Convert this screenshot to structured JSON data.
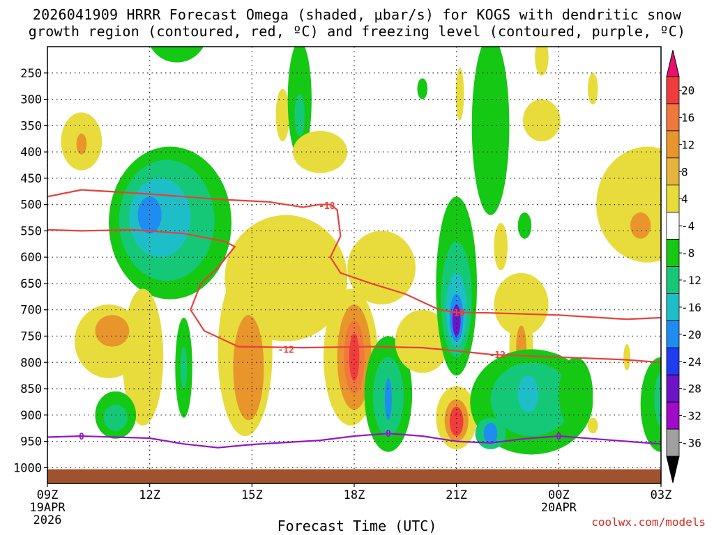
{
  "chart_data": {
    "type": "heatmap",
    "title_line1": "2026041909 HRRR Forecast Omega (shaded, μbar/s) for KOGS with dendritic snow",
    "title_line2": "growth region (contoured, red, ºC) and freezing level (contoured, purple, ºC)",
    "xlabel": "Forecast Time (UTC)",
    "credit": "coolwx.com/models",
    "x_range_hours": [
      0,
      18
    ],
    "y_range_hpa": [
      200,
      1030
    ],
    "y_ticks": [
      250,
      300,
      350,
      400,
      450,
      500,
      550,
      600,
      650,
      700,
      750,
      800,
      850,
      900,
      950,
      1000
    ],
    "x_ticks": [
      {
        "hour": 0,
        "label": "09Z",
        "sub1": "19APR",
        "sub2": "2026"
      },
      {
        "hour": 3,
        "label": "12Z",
        "sub1": "",
        "sub2": ""
      },
      {
        "hour": 6,
        "label": "15Z",
        "sub1": "",
        "sub2": ""
      },
      {
        "hour": 9,
        "label": "18Z",
        "sub1": "",
        "sub2": ""
      },
      {
        "hour": 12,
        "label": "21Z",
        "sub1": "",
        "sub2": ""
      },
      {
        "hour": 15,
        "label": "00Z",
        "sub1": "20APR",
        "sub2": ""
      },
      {
        "hour": 18,
        "label": "03Z",
        "sub1": "",
        "sub2": ""
      }
    ],
    "colorbar": {
      "labels": [
        "20",
        "16",
        "12",
        "8",
        "4",
        "-4",
        "-8",
        "-12",
        "-16",
        "-20",
        "-24",
        "-28",
        "-32",
        "-36"
      ],
      "colors": [
        "#e8106e",
        "#f03c3c",
        "#f0783c",
        "#e8962c",
        "#e6b43c",
        "#e8dc3c",
        "#ffffff",
        "#14c814",
        "#14c878",
        "#1ebec8",
        "#1e8cf0",
        "#1e3cf0",
        "#6e14c8",
        "#a00ac8",
        "#a0a0a0",
        "#000000"
      ]
    },
    "omega_blobs": [
      {
        "t": 1.0,
        "p": 380,
        "dt": 0.6,
        "dp": 55,
        "value": 5
      },
      {
        "t": 1.0,
        "p": 385,
        "dt": 0.15,
        "dp": 20,
        "value": 9
      },
      {
        "t": 3.8,
        "p": 170,
        "dt": 0.9,
        "dp": 60,
        "value": -6
      },
      {
        "t": 3.6,
        "p": 535,
        "dt": 1.8,
        "dp": 145,
        "value": -6
      },
      {
        "t": 3.5,
        "p": 530,
        "dt": 1.4,
        "dp": 115,
        "value": -10
      },
      {
        "t": 3.3,
        "p": 525,
        "dt": 0.9,
        "dp": 75,
        "value": -13
      },
      {
        "t": 3.0,
        "p": 520,
        "dt": 0.35,
        "dp": 35,
        "value": -17
      },
      {
        "t": 2.8,
        "p": 790,
        "dt": 0.6,
        "dp": 130,
        "value": 5
      },
      {
        "t": 1.8,
        "p": 760,
        "dt": 1.0,
        "dp": 70,
        "value": 5
      },
      {
        "t": 1.9,
        "p": 740,
        "dt": 0.5,
        "dp": 30,
        "value": 9
      },
      {
        "t": 2.0,
        "p": 900,
        "dt": 0.6,
        "dp": 45,
        "value": -6
      },
      {
        "t": 2.0,
        "p": 905,
        "dt": 0.35,
        "dp": 25,
        "value": -10
      },
      {
        "t": 4.0,
        "p": 810,
        "dt": 0.25,
        "dp": 95,
        "value": -6
      },
      {
        "t": 4.0,
        "p": 810,
        "dt": 0.1,
        "dp": 40,
        "value": -10
      },
      {
        "t": 6.9,
        "p": 330,
        "dt": 0.2,
        "dp": 50,
        "value": 5
      },
      {
        "t": 7.4,
        "p": 300,
        "dt": 0.35,
        "dp": 110,
        "value": -6
      },
      {
        "t": 7.4,
        "p": 330,
        "dt": 0.15,
        "dp": 40,
        "value": -10
      },
      {
        "t": 8.0,
        "p": 400,
        "dt": 0.8,
        "dp": 40,
        "value": 5
      },
      {
        "t": 7.0,
        "p": 640,
        "dt": 1.8,
        "dp": 120,
        "value": 5
      },
      {
        "t": 5.8,
        "p": 780,
        "dt": 0.8,
        "dp": 160,
        "value": 5
      },
      {
        "t": 5.9,
        "p": 810,
        "dt": 0.45,
        "dp": 100,
        "value": 9
      },
      {
        "t": 9.8,
        "p": 620,
        "dt": 1.0,
        "dp": 70,
        "value": 5
      },
      {
        "t": 8.9,
        "p": 790,
        "dt": 0.8,
        "dp": 130,
        "value": 5
      },
      {
        "t": 9.0,
        "p": 790,
        "dt": 0.5,
        "dp": 100,
        "value": 9
      },
      {
        "t": 9.0,
        "p": 790,
        "dt": 0.3,
        "dp": 70,
        "value": 13
      },
      {
        "t": 9.0,
        "p": 790,
        "dt": 0.15,
        "dp": 45,
        "value": 17
      },
      {
        "t": 10.0,
        "p": 860,
        "dt": 0.7,
        "dp": 110,
        "value": -6
      },
      {
        "t": 10.0,
        "p": 865,
        "dt": 0.45,
        "dp": 75,
        "value": -10
      },
      {
        "t": 10.0,
        "p": 870,
        "dt": 0.1,
        "dp": 40,
        "value": -17
      },
      {
        "t": 11.0,
        "p": 760,
        "dt": 0.8,
        "dp": 60,
        "value": 5
      },
      {
        "t": 12.0,
        "p": 655,
        "dt": 0.6,
        "dp": 170,
        "value": -6
      },
      {
        "t": 12.0,
        "p": 680,
        "dt": 0.45,
        "dp": 110,
        "value": -10
      },
      {
        "t": 12.0,
        "p": 700,
        "dt": 0.3,
        "dp": 70,
        "value": -14
      },
      {
        "t": 12.0,
        "p": 715,
        "dt": 0.2,
        "dp": 45,
        "value": -19
      },
      {
        "t": 12.0,
        "p": 720,
        "dt": 0.12,
        "dp": 30,
        "value": -27
      },
      {
        "t": 12.0,
        "p": 905,
        "dt": 0.6,
        "dp": 60,
        "value": 5
      },
      {
        "t": 12.0,
        "p": 910,
        "dt": 0.35,
        "dp": 40,
        "value": 9
      },
      {
        "t": 12.0,
        "p": 912,
        "dt": 0.2,
        "dp": 28,
        "value": 17
      },
      {
        "t": 13.3,
        "p": 580,
        "dt": 0.2,
        "dp": 45,
        "value": 5
      },
      {
        "t": 13.9,
        "p": 690,
        "dt": 0.8,
        "dp": 60,
        "value": 5
      },
      {
        "t": 13.0,
        "p": 350,
        "dt": 0.55,
        "dp": 170,
        "value": -6
      },
      {
        "t": 12.1,
        "p": 290,
        "dt": 0.12,
        "dp": 50,
        "value": 5
      },
      {
        "t": 13.9,
        "p": 770,
        "dt": 0.35,
        "dp": 70,
        "value": 5
      },
      {
        "t": 13.9,
        "p": 770,
        "dt": 0.15,
        "dp": 40,
        "value": 9
      },
      {
        "t": 14.2,
        "p": 875,
        "dt": 1.8,
        "dp": 100,
        "value": -6
      },
      {
        "t": 14.2,
        "p": 870,
        "dt": 1.2,
        "dp": 70,
        "value": -10
      },
      {
        "t": 14.1,
        "p": 860,
        "dt": 0.3,
        "dp": 35,
        "value": -14
      },
      {
        "t": 13.0,
        "p": 935,
        "dt": 0.45,
        "dp": 30,
        "value": -10
      },
      {
        "t": 13.0,
        "p": 935,
        "dt": 0.2,
        "dp": 20,
        "value": -19
      },
      {
        "t": 14.5,
        "p": 340,
        "dt": 0.55,
        "dp": 40,
        "value": 5
      },
      {
        "t": 14.5,
        "p": 220,
        "dt": 0.2,
        "dp": 35,
        "value": 5
      },
      {
        "t": 16.0,
        "p": 280,
        "dt": 0.15,
        "dp": 30,
        "value": 5
      },
      {
        "t": 11.0,
        "p": 280,
        "dt": 0.15,
        "dp": 20,
        "value": -6
      },
      {
        "t": 14.0,
        "p": 540,
        "dt": 0.2,
        "dp": 25,
        "value": -6
      },
      {
        "t": 15.5,
        "p": 860,
        "dt": 0.5,
        "dp": 70,
        "value": -6
      },
      {
        "t": 17.6,
        "p": 500,
        "dt": 1.5,
        "dp": 110,
        "value": 5
      },
      {
        "t": 17.4,
        "p": 540,
        "dt": 0.3,
        "dp": 25,
        "value": 9
      },
      {
        "t": 18.0,
        "p": 880,
        "dt": 0.6,
        "dp": 90,
        "value": -6
      },
      {
        "t": 18.0,
        "p": 870,
        "dt": 0.2,
        "dp": 50,
        "value": -10
      },
      {
        "t": 16.0,
        "p": 920,
        "dt": 0.15,
        "dp": 15,
        "value": 5
      },
      {
        "t": 17.0,
        "p": 790,
        "dt": 0.1,
        "dp": 25,
        "value": 5
      }
    ],
    "contours": [
      {
        "name": "dgz-upper",
        "label": "-18",
        "color": "#e8403c",
        "points": [
          [
            0,
            485
          ],
          [
            1,
            472
          ],
          [
            3,
            480
          ],
          [
            5,
            490
          ],
          [
            6.5,
            495
          ],
          [
            7.5,
            505
          ],
          [
            8,
            500
          ],
          [
            8.3,
            500
          ],
          [
            8.5,
            510
          ],
          [
            8.6,
            560
          ],
          [
            8.3,
            600
          ],
          [
            8.6,
            630
          ],
          [
            9.5,
            650
          ],
          [
            10.5,
            670
          ],
          [
            11.5,
            700
          ],
          [
            12,
            705
          ],
          [
            13,
            706
          ],
          [
            15,
            710
          ],
          [
            17,
            718
          ],
          [
            18,
            715
          ]
        ],
        "labels_at": [
          [
            8.2,
            502
          ],
          [
            12.0,
            705
          ]
        ]
      },
      {
        "name": "dgz-lower",
        "label": "-12",
        "color": "#e8403c",
        "points": [
          [
            0,
            548
          ],
          [
            1,
            550
          ],
          [
            2.5,
            548
          ],
          [
            4,
            555
          ],
          [
            5.2,
            570
          ],
          [
            5.5,
            580
          ],
          [
            5.0,
            620
          ],
          [
            4.5,
            650
          ],
          [
            4.2,
            700
          ],
          [
            4.6,
            740
          ],
          [
            5.6,
            770
          ],
          [
            7.5,
            772
          ],
          [
            9.5,
            770
          ],
          [
            11,
            772
          ],
          [
            12,
            778
          ],
          [
            13,
            785
          ],
          [
            15,
            790
          ],
          [
            17,
            795
          ],
          [
            18,
            800
          ]
        ],
        "labels_at": [
          [
            7.0,
            775
          ],
          [
            13.2,
            785
          ]
        ]
      },
      {
        "name": "freezing-level",
        "label": "0",
        "color": "#9614c8",
        "points": [
          [
            0,
            942
          ],
          [
            1,
            940
          ],
          [
            3,
            944
          ],
          [
            4,
            955
          ],
          [
            5,
            962
          ],
          [
            6,
            956
          ],
          [
            8,
            948
          ],
          [
            9,
            940
          ],
          [
            10,
            935
          ],
          [
            11,
            940
          ],
          [
            12,
            950
          ],
          [
            13,
            953
          ],
          [
            14,
            945
          ],
          [
            15,
            940
          ],
          [
            16,
            945
          ],
          [
            17,
            950
          ],
          [
            18,
            955
          ]
        ],
        "labels_at": [
          [
            1.0,
            940
          ],
          [
            10.0,
            935
          ],
          [
            15.0,
            940
          ]
        ]
      }
    ],
    "terrain_top_hpa": 1003
  }
}
